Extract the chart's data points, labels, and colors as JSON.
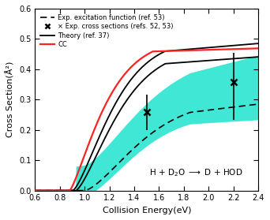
{
  "xlim": [
    0.6,
    2.4
  ],
  "ylim": [
    0.0,
    0.6
  ],
  "xlabel": "Collision Energy(eV)",
  "ylabel": "Cross Section(Å²)",
  "legend_entries": [
    "Exp. excitation function (ref. 53)",
    "× Exp. cross sections (refs. 52, 53)",
    "Theory (ref. 37)",
    "CC"
  ],
  "shaded_color": "#00e0c8",
  "shaded_alpha": 0.75,
  "cc_color": "#ff2222",
  "theory_color": "#000000",
  "dashed_color": "#000000",
  "exp_points": [
    [
      1.5,
      0.258
    ],
    [
      2.2,
      0.358
    ]
  ],
  "exp_errorbars_lo": [
    0.058,
    0.125
  ],
  "exp_errorbars_hi": [
    0.058,
    0.095
  ],
  "xticks": [
    0.6,
    0.8,
    1.0,
    1.2,
    1.4,
    1.6,
    1.8,
    2.0,
    2.2,
    2.4
  ],
  "yticks": [
    0.0,
    0.1,
    0.2,
    0.3,
    0.4,
    0.5,
    0.6
  ]
}
